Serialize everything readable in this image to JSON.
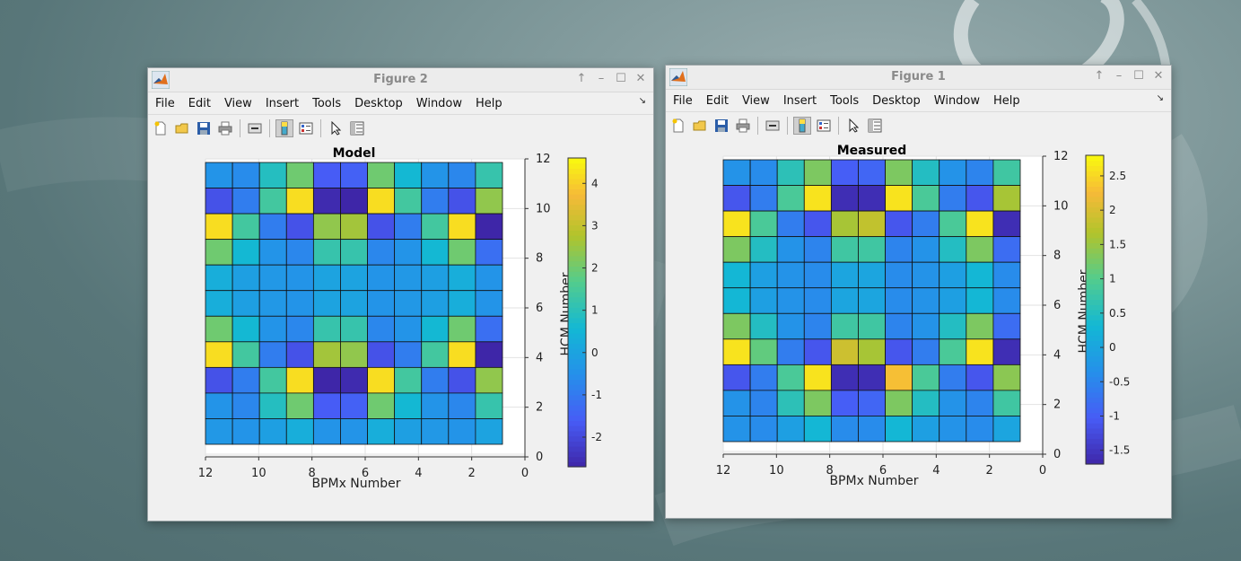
{
  "menus": [
    "File",
    "Edit",
    "View",
    "Insert",
    "Tools",
    "Desktop",
    "Window",
    "Help"
  ],
  "toolbar_icons": [
    "new-figure-icon",
    "open-file-icon",
    "save-icon",
    "print-icon",
    "link-plot-icon",
    "colorbar-icon",
    "legend-icon",
    "pointer-icon",
    "property-inspector-icon"
  ],
  "windows": [
    {
      "title": "Figure 2",
      "chart_data": {
        "type": "heatmap",
        "title": "Model",
        "xlabel": "BPMx Number",
        "ylabel": "HCM Number",
        "xlim": [
          0,
          12
        ],
        "ylim": [
          0,
          12
        ],
        "x_direction": "reversed",
        "xticks": [
          "12",
          "10",
          "8",
          "6",
          "4",
          "2",
          "0"
        ],
        "yticks": [
          "0",
          "2",
          "4",
          "6",
          "8",
          "10",
          "12"
        ],
        "colorbar_range": [
          -2.7,
          4.6
        ],
        "colorbar_ticks": [
          "4",
          "3",
          "2",
          "1",
          "0",
          "-1",
          "-2"
        ],
        "colorbar_tick_values": [
          4,
          3,
          2,
          1,
          0,
          -1,
          -2
        ],
        "rows_top_to_bottom": [
          [
            -0.4,
            -0.6,
            0.9,
            2.0,
            -1.6,
            -1.5,
            2.0,
            0.6,
            -0.4,
            -0.7,
            1.2
          ],
          [
            -1.8,
            -0.9,
            1.4,
            4.2,
            -2.6,
            -2.7,
            4.2,
            1.4,
            -0.9,
            -1.8,
            2.4
          ],
          [
            4.2,
            1.4,
            -0.9,
            -1.8,
            2.4,
            2.6,
            -1.8,
            -0.9,
            1.4,
            4.2,
            -2.7
          ],
          [
            2.0,
            0.6,
            -0.4,
            -0.7,
            1.2,
            1.2,
            -0.7,
            -0.4,
            0.6,
            2.0,
            -1.2
          ],
          [
            0.3,
            -0.1,
            -0.3,
            -0.4,
            0.0,
            0.0,
            -0.4,
            -0.3,
            -0.1,
            0.3,
            -0.4
          ],
          [
            0.3,
            -0.1,
            -0.3,
            -0.4,
            0.0,
            0.0,
            -0.4,
            -0.3,
            -0.1,
            0.3,
            -0.4
          ],
          [
            2.0,
            0.6,
            -0.4,
            -0.7,
            1.2,
            1.2,
            -0.7,
            -0.4,
            0.6,
            2.0,
            -1.2
          ],
          [
            4.2,
            1.4,
            -0.9,
            -1.8,
            2.6,
            2.4,
            -1.8,
            -0.9,
            1.4,
            4.2,
            -2.7
          ],
          [
            -1.8,
            -0.9,
            1.4,
            4.2,
            -2.7,
            -2.6,
            4.2,
            1.4,
            -0.9,
            -1.8,
            2.4
          ],
          [
            -0.4,
            -0.7,
            0.9,
            2.0,
            -1.6,
            -1.5,
            2.0,
            0.6,
            -0.4,
            -0.7,
            1.2
          ],
          [
            -0.3,
            -0.4,
            -0.1,
            0.3,
            -0.4,
            -0.4,
            0.3,
            -0.1,
            -0.3,
            -0.4,
            0.0
          ]
        ]
      }
    },
    {
      "title": "Figure 1",
      "chart_data": {
        "type": "heatmap",
        "title": "Measured",
        "xlabel": "BPMx Number",
        "ylabel": "HCM Number",
        "xlim": [
          0,
          12
        ],
        "ylim": [
          0,
          12
        ],
        "x_direction": "reversed",
        "xticks": [
          "12",
          "10",
          "8",
          "6",
          "4",
          "2",
          "0"
        ],
        "yticks": [
          "0",
          "2",
          "4",
          "6",
          "8",
          "10",
          "12"
        ],
        "colorbar_range": [
          -1.7,
          2.8
        ],
        "colorbar_ticks": [
          "2.5",
          "2",
          "1.5",
          "1",
          "0.5",
          "0",
          "-0.5",
          "-1",
          "-1.5"
        ],
        "colorbar_tick_values": [
          2.5,
          2,
          1.5,
          1,
          0.5,
          0,
          -0.5,
          -1,
          -1.5
        ],
        "rows_top_to_bottom": [
          [
            -0.3,
            -0.4,
            0.6,
            1.3,
            -1.0,
            -0.9,
            1.3,
            0.5,
            -0.3,
            -0.5,
            0.8
          ],
          [
            -1.1,
            -0.6,
            0.9,
            2.6,
            -1.6,
            -1.6,
            2.6,
            0.9,
            -0.6,
            -1.1,
            1.6
          ],
          [
            2.6,
            0.9,
            -0.6,
            -1.1,
            1.6,
            1.8,
            -1.1,
            -0.6,
            0.9,
            2.6,
            -1.6
          ],
          [
            1.3,
            0.5,
            -0.3,
            -0.5,
            0.8,
            0.8,
            -0.5,
            -0.3,
            0.5,
            1.3,
            -0.8
          ],
          [
            0.3,
            -0.1,
            -0.3,
            -0.4,
            0.0,
            0.0,
            -0.4,
            -0.3,
            -0.1,
            0.3,
            -0.4
          ],
          [
            0.3,
            -0.1,
            -0.3,
            -0.4,
            0.0,
            0.0,
            -0.4,
            -0.3,
            -0.1,
            0.3,
            -0.4
          ],
          [
            1.3,
            0.5,
            -0.3,
            -0.5,
            0.8,
            0.8,
            -0.5,
            -0.3,
            0.5,
            1.3,
            -0.8
          ],
          [
            2.6,
            1.1,
            -0.6,
            -1.1,
            1.9,
            1.6,
            -1.1,
            -0.6,
            0.9,
            2.6,
            -1.6
          ],
          [
            -1.1,
            -0.6,
            0.9,
            2.6,
            -1.6,
            -1.6,
            2.3,
            0.9,
            -0.6,
            -1.1,
            1.4
          ],
          [
            -0.3,
            -0.5,
            0.6,
            1.3,
            -1.0,
            -0.9,
            1.3,
            0.5,
            -0.3,
            -0.5,
            0.8
          ],
          [
            -0.3,
            -0.4,
            -0.1,
            0.3,
            -0.4,
            -0.4,
            0.3,
            -0.1,
            -0.3,
            -0.4,
            0.0
          ]
        ]
      }
    }
  ]
}
